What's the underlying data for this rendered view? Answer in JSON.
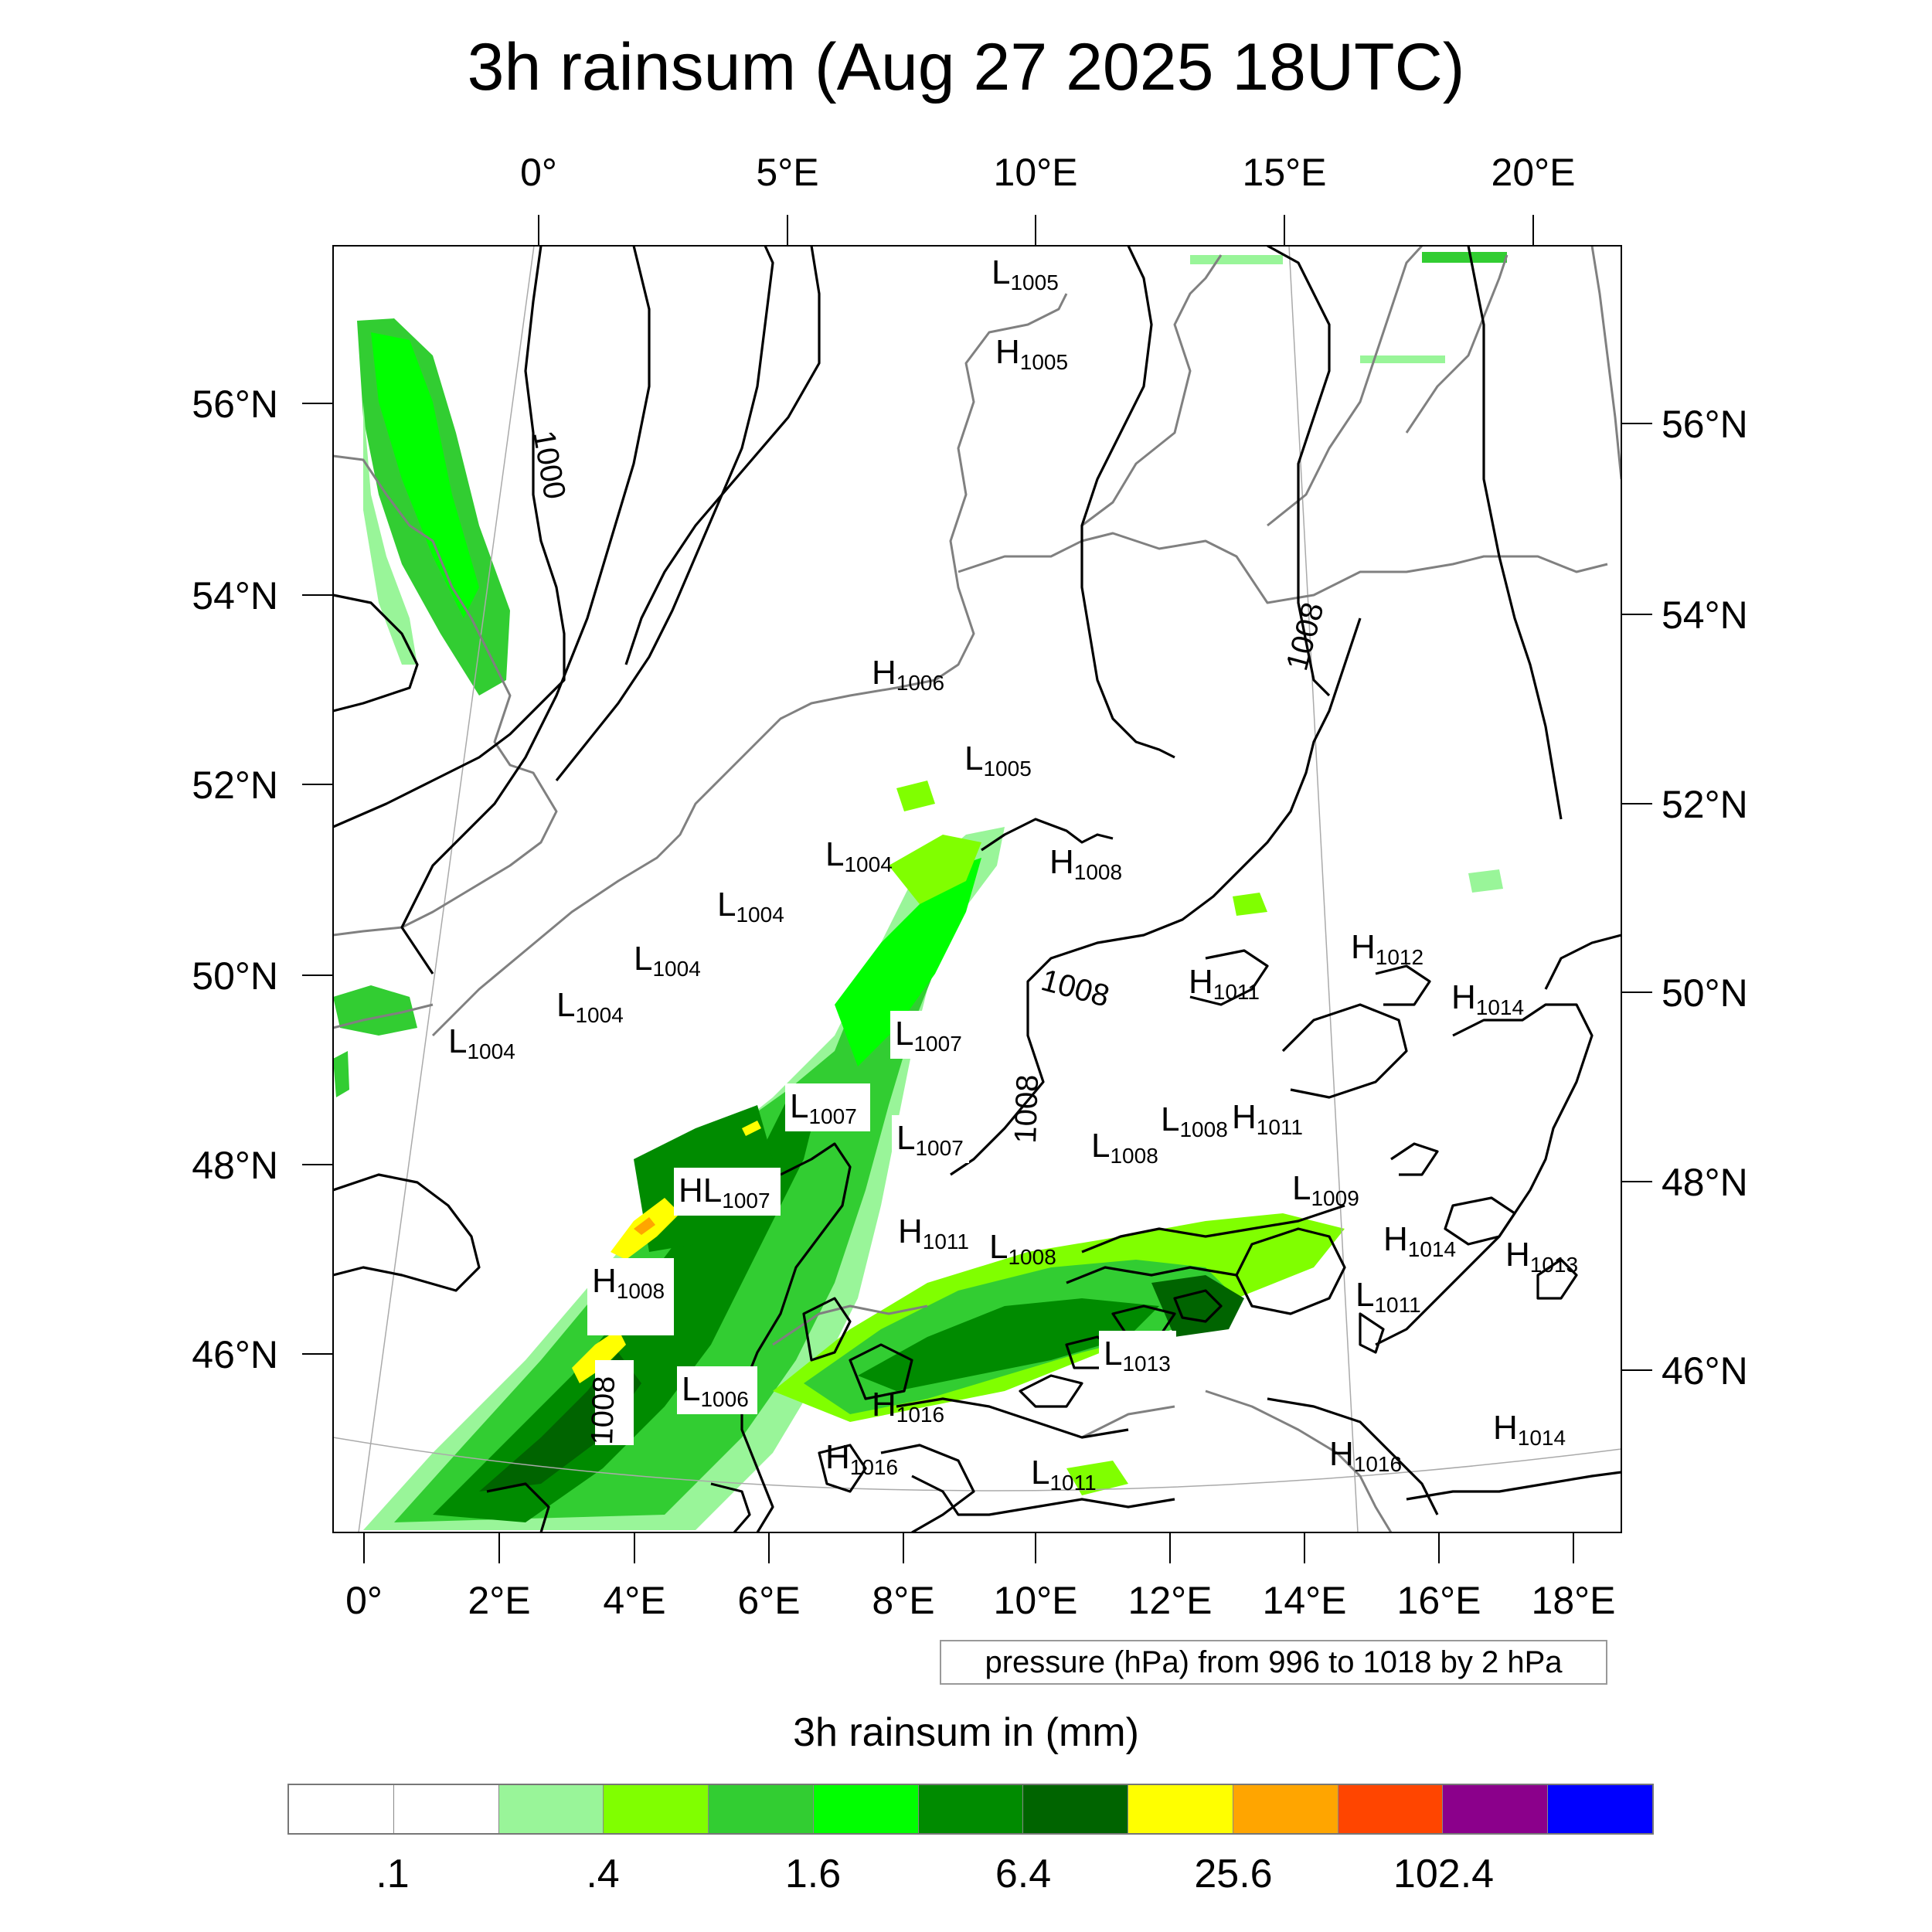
{
  "title": "3h rainsum (Aug 27 2025 18UTC)",
  "top_lon_labels": [
    "0°",
    "5°E",
    "10°E",
    "15°E",
    "20°E"
  ],
  "left_lat_labels": [
    "56°N",
    "54°N",
    "52°N",
    "50°N",
    "48°N",
    "46°N"
  ],
  "right_lat_labels": [
    "56°N",
    "54°N",
    "52°N",
    "50°N",
    "48°N",
    "46°N"
  ],
  "bottom_lon_labels": [
    "0°",
    "2°E",
    "4°E",
    "6°E",
    "8°E",
    "10°E",
    "12°E",
    "14°E",
    "16°E",
    "18°E"
  ],
  "contour_labels": [
    "1000",
    "1008",
    "1008",
    "1008",
    "1008"
  ],
  "pressure_centers": [
    {
      "t": "L",
      "v": "1005"
    },
    {
      "t": "H",
      "v": "1005"
    },
    {
      "t": "H",
      "v": "1006"
    },
    {
      "t": "L",
      "v": "1005"
    },
    {
      "t": "H",
      "v": "1008"
    },
    {
      "t": "L",
      "v": "1004"
    },
    {
      "t": "L",
      "v": "1004"
    },
    {
      "t": "L",
      "v": "1004"
    },
    {
      "t": "L",
      "v": "1004"
    },
    {
      "t": "L",
      "v": "1004"
    },
    {
      "t": "H",
      "v": "1012"
    },
    {
      "t": "H",
      "v": "1011"
    },
    {
      "t": "H",
      "v": "1014"
    },
    {
      "t": "L",
      "v": "1007"
    },
    {
      "t": "L",
      "v": "1007"
    },
    {
      "t": "L",
      "v": "1007"
    },
    {
      "t": "L",
      "v": "1008"
    },
    {
      "t": "H",
      "v": "1011"
    },
    {
      "t": "L",
      "v": "1008"
    },
    {
      "t": "L",
      "v": "1007"
    },
    {
      "t": "L",
      "v": "1009"
    },
    {
      "t": "H",
      "v": "1011"
    },
    {
      "t": "L",
      "v": "1008"
    },
    {
      "t": "H",
      "v": "1014"
    },
    {
      "t": "H",
      "v": "1013"
    },
    {
      "t": "H",
      "v": "1008"
    },
    {
      "t": "L",
      "v": "1011"
    },
    {
      "t": "L",
      "v": "1013"
    },
    {
      "t": "L",
      "v": "1006"
    },
    {
      "t": "H",
      "v": "1016"
    },
    {
      "t": "H",
      "v": "1016"
    },
    {
      "t": "H",
      "v": "1016"
    },
    {
      "t": "H",
      "v": "1014"
    },
    {
      "t": "L",
      "v": "1011"
    }
  ],
  "legend_caption": "pressure (hPa) from 996 to 1018 by 2 hPa",
  "colorbar": {
    "title": "3h rainsum in (mm)",
    "colors": [
      "#ffffff",
      "#ffffff",
      "#99f599",
      "#80ff00",
      "#32cd32",
      "#00ff00",
      "#008b00",
      "#006400",
      "#ffff00",
      "#ffa500",
      "#ff4500",
      "#8b008b",
      "#0000ff"
    ],
    "tick_labels": [
      ".1",
      ".4",
      "1.6",
      "6.4",
      "25.6",
      "102.4"
    ]
  },
  "colors": {
    "contour": "#000000",
    "coastline": "#808080",
    "frame": "#000000",
    "graticule": "#aaaaaa"
  }
}
